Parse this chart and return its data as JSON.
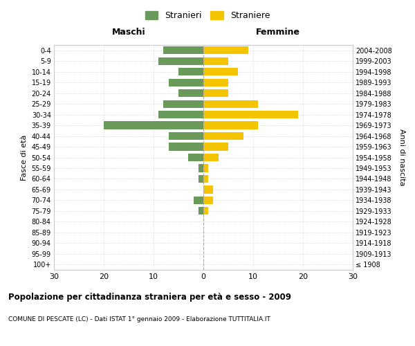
{
  "age_groups": [
    "100+",
    "95-99",
    "90-94",
    "85-89",
    "80-84",
    "75-79",
    "70-74",
    "65-69",
    "60-64",
    "55-59",
    "50-54",
    "45-49",
    "40-44",
    "35-39",
    "30-34",
    "25-29",
    "20-24",
    "15-19",
    "10-14",
    "5-9",
    "0-4"
  ],
  "birth_years": [
    "≤ 1908",
    "1909-1913",
    "1914-1918",
    "1919-1923",
    "1924-1928",
    "1929-1933",
    "1934-1938",
    "1939-1943",
    "1944-1948",
    "1949-1953",
    "1954-1958",
    "1959-1963",
    "1964-1968",
    "1969-1973",
    "1974-1978",
    "1979-1983",
    "1984-1988",
    "1989-1993",
    "1994-1998",
    "1999-2003",
    "2004-2008"
  ],
  "stranieri": [
    0,
    0,
    0,
    0,
    0,
    1,
    2,
    0,
    1,
    1,
    3,
    7,
    7,
    20,
    9,
    8,
    5,
    7,
    5,
    9,
    8
  ],
  "straniere": [
    0,
    0,
    0,
    0,
    0,
    1,
    2,
    2,
    1,
    1,
    3,
    5,
    8,
    11,
    19,
    11,
    5,
    5,
    7,
    5,
    9
  ],
  "color_stranieri": "#6a9a5a",
  "color_straniere": "#f5c400",
  "xlim": 30,
  "title": "Popolazione per cittadinanza straniera per età e sesso - 2009",
  "subtitle": "COMUNE DI PESCATE (LC) - Dati ISTAT 1° gennaio 2009 - Elaborazione TUTTITALIA.IT",
  "xlabel_left": "Maschi",
  "xlabel_right": "Femmine",
  "ylabel_left": "Fasce di età",
  "ylabel_right": "Anni di nascita",
  "legend_stranieri": "Stranieri",
  "legend_straniere": "Straniere",
  "bg_color": "#ffffff",
  "grid_color": "#cccccc"
}
